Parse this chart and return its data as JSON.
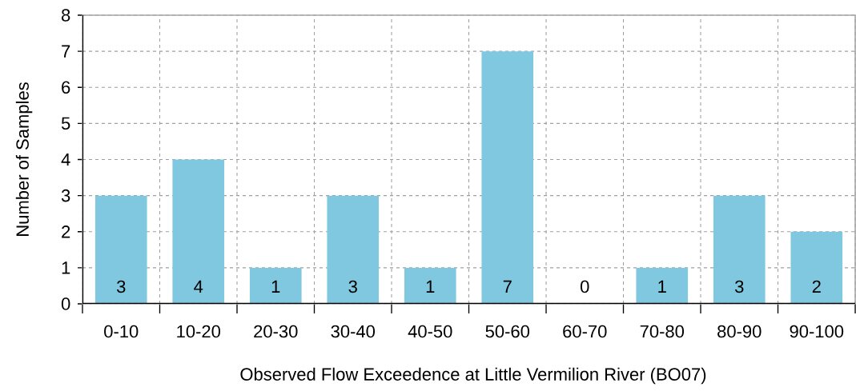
{
  "chart_data": {
    "type": "bar",
    "xlabel": "Observed Flow Exceedence at Little Vermilion River (BO07)",
    "ylabel": "Number of Samples",
    "categories": [
      "0-10",
      "10-20",
      "20-30",
      "30-40",
      "40-50",
      "50-60",
      "60-70",
      "70-80",
      "80-90",
      "90-100"
    ],
    "values": [
      3,
      4,
      1,
      3,
      1,
      7,
      0,
      1,
      3,
      2
    ],
    "color": "#80c8e0",
    "ylim": [
      0,
      8
    ],
    "yticks": [
      0,
      1,
      2,
      3,
      4,
      5,
      6,
      7,
      8
    ],
    "grid": true,
    "data_labels": true
  }
}
